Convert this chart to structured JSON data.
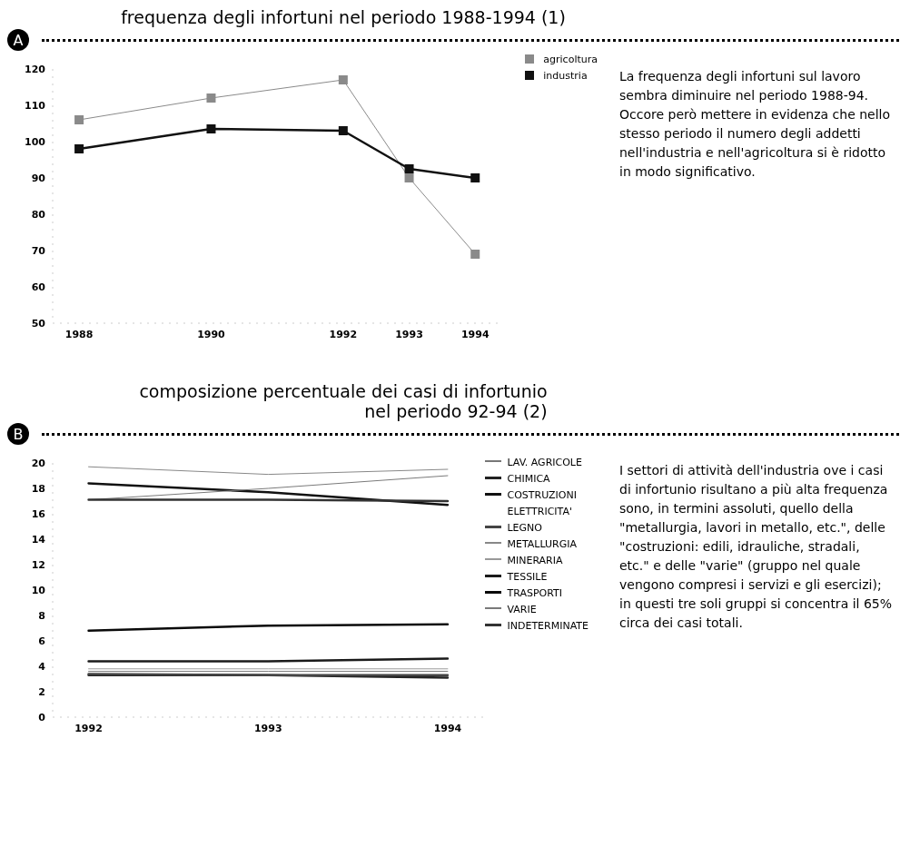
{
  "chart_data": [
    {
      "type": "line",
      "title": "frequenza degli infortuni nel periodo 1988-1994 (1)",
      "x": [
        1988,
        1990,
        1992,
        1993,
        1994
      ],
      "xlim": [
        1987.6,
        1994.4
      ],
      "xticks": [
        1988,
        1990,
        1992,
        1993,
        1994
      ],
      "ylim": [
        50,
        120
      ],
      "yticks": [
        50,
        60,
        70,
        80,
        90,
        100,
        110,
        120
      ],
      "series": [
        {
          "name": "agricoltura",
          "color": "#8a8a8a",
          "values": [
            106,
            112,
            117,
            90,
            69
          ]
        },
        {
          "name": "industria",
          "color": "#111111",
          "values": [
            98,
            103.5,
            103,
            92.5,
            90
          ]
        }
      ],
      "marker": "square",
      "grid": false,
      "legend": "top right",
      "annotations": [
        "A",
        "La frequenza degli infortuni sul lavoro sembra diminuire nel periodo 1988-94. Occore però mettere in evidenza che nello stesso periodo il numero degli addetti nell'industria e nell'agricoltura si è  ridotto in modo significativo."
      ]
    },
    {
      "type": "line",
      "title": "composizione percentuale dei casi di infortunio\nnel periodo 92-94 (2)",
      "x": [
        1992,
        1993,
        1994
      ],
      "xlim": [
        1991.8,
        1994.2
      ],
      "xticks": [
        1992,
        1993,
        1994
      ],
      "ylim": [
        0,
        20
      ],
      "yticks": [
        0,
        2,
        4,
        6,
        8,
        10,
        12,
        14,
        16,
        18,
        20
      ],
      "series": [
        {
          "name": "LAV. AGRICOLE",
          "color": "#777777",
          "values": [
            3.6,
            3.6,
            3.6
          ]
        },
        {
          "name": "CHIMICA",
          "color": "#222222",
          "values": [
            3.3,
            3.3,
            3.1
          ]
        },
        {
          "name": "COSTRUZIONI",
          "color": "#111111",
          "values": [
            18.4,
            17.7,
            16.7
          ]
        },
        {
          "name": "ELETTRICITA'",
          "values": [
            null,
            null,
            null
          ]
        },
        {
          "name": "LEGNO",
          "color": "#444444",
          "values": [
            3.4,
            3.3,
            3.3
          ]
        },
        {
          "name": "METALLURGIA",
          "color": "#888888",
          "values": [
            19.7,
            19.1,
            19.5
          ]
        },
        {
          "name": "MINERARIA",
          "color": "#999999",
          "values": [
            3.8,
            3.8,
            3.8
          ]
        },
        {
          "name": "TESSILE",
          "color": "#1a1a1a",
          "values": [
            4.4,
            4.4,
            4.6
          ]
        },
        {
          "name": "TRASPORTI",
          "color": "#0a0a0a",
          "values": [
            6.8,
            7.2,
            7.3
          ]
        },
        {
          "name": "VARIE",
          "color": "#7a7a7a",
          "values": [
            17.1,
            18.0,
            19.0
          ]
        },
        {
          "name": "INDETERMINATE",
          "color": "#333333",
          "values": [
            17.1,
            17.1,
            17.0
          ]
        }
      ],
      "marker": "none",
      "grid": false,
      "legend": "right",
      "annotations": [
        "B",
        "I settori di attività dell'industria ove i casi di infortunio risultano a più alta frequenza sono, in termini assoluti, quello della \"metallurgia, lavori in metallo, etc.\", delle \"costruzioni: edili, idrauliche, stradali, etc.\" e delle \"varie\" (gruppo nel quale vengono compresi i servizi e gli esercizi); in questi tre soli gruppi si concentra il 65% circa dei casi totali."
      ]
    }
  ]
}
